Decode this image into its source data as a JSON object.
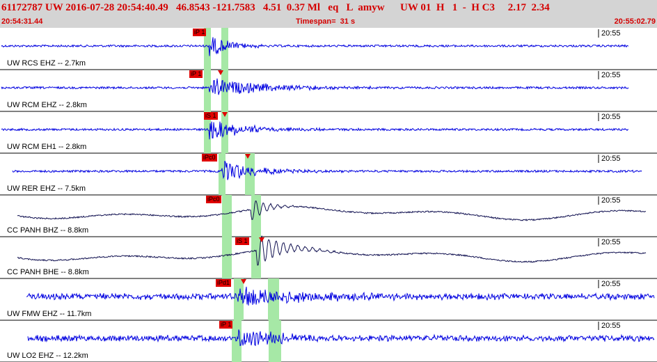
{
  "header": {
    "title": "61172787 UW 2016-07-28 20:54:40.49   46.8543 -121.7583   4.51  0.37 Ml   eq   L  amyw      UW 01  H   1  -  H C3     2.17  2.34",
    "start_time": "20:54:31.44",
    "timespan": "Timespan=  31 s",
    "end_time": "20:55:02.79"
  },
  "colors": {
    "header_bg": "#d4d4d4",
    "header_text": "#d40000",
    "trace_high": "#0000e0",
    "trace_broadband": "#101050",
    "pick_window": "#a6e8a6",
    "pick_flag": "#e00000"
  },
  "traces": [
    {
      "label": "UW RCS EHZ -- 2.7km",
      "time_mark": "20:55",
      "style": "high",
      "picks": [
        {
          "label": "iP 1",
          "window": "green"
        }
      ]
    },
    {
      "label": "UW RCM EHZ -- 2.8km",
      "time_mark": "20:55",
      "style": "high",
      "picks": [
        {
          "label": "iP 1",
          "window": "green"
        }
      ]
    },
    {
      "label": "UW RCM EH1 -- 2.8km",
      "time_mark": "20:55",
      "style": "high",
      "picks": [
        {
          "label": "iS 1",
          "window": "green"
        }
      ]
    },
    {
      "label": "UW RER EHZ -- 7.5km",
      "time_mark": "20:55",
      "style": "high",
      "picks": [
        {
          "label": "iPc0",
          "window": "green"
        }
      ]
    },
    {
      "label": "CC PANH BHZ -- 8.8km",
      "time_mark": "20:55",
      "style": "broadband",
      "picks": [
        {
          "label": "iPc0",
          "window": "green"
        }
      ]
    },
    {
      "label": "CC PANH BHE -- 8.8km",
      "time_mark": "20:55",
      "style": "broadband",
      "picks": [
        {
          "label": "iS 1",
          "window": "green"
        }
      ]
    },
    {
      "label": "UW FMW EHZ -- 11.7km",
      "time_mark": "20:55",
      "style": "high",
      "picks": [
        {
          "label": "iPd1",
          "window": "green"
        }
      ]
    },
    {
      "label": "UW LO2 EHZ -- 12.2km",
      "time_mark": "20:55",
      "style": "high",
      "picks": [
        {
          "label": "iP 1",
          "window": "green"
        }
      ]
    }
  ]
}
